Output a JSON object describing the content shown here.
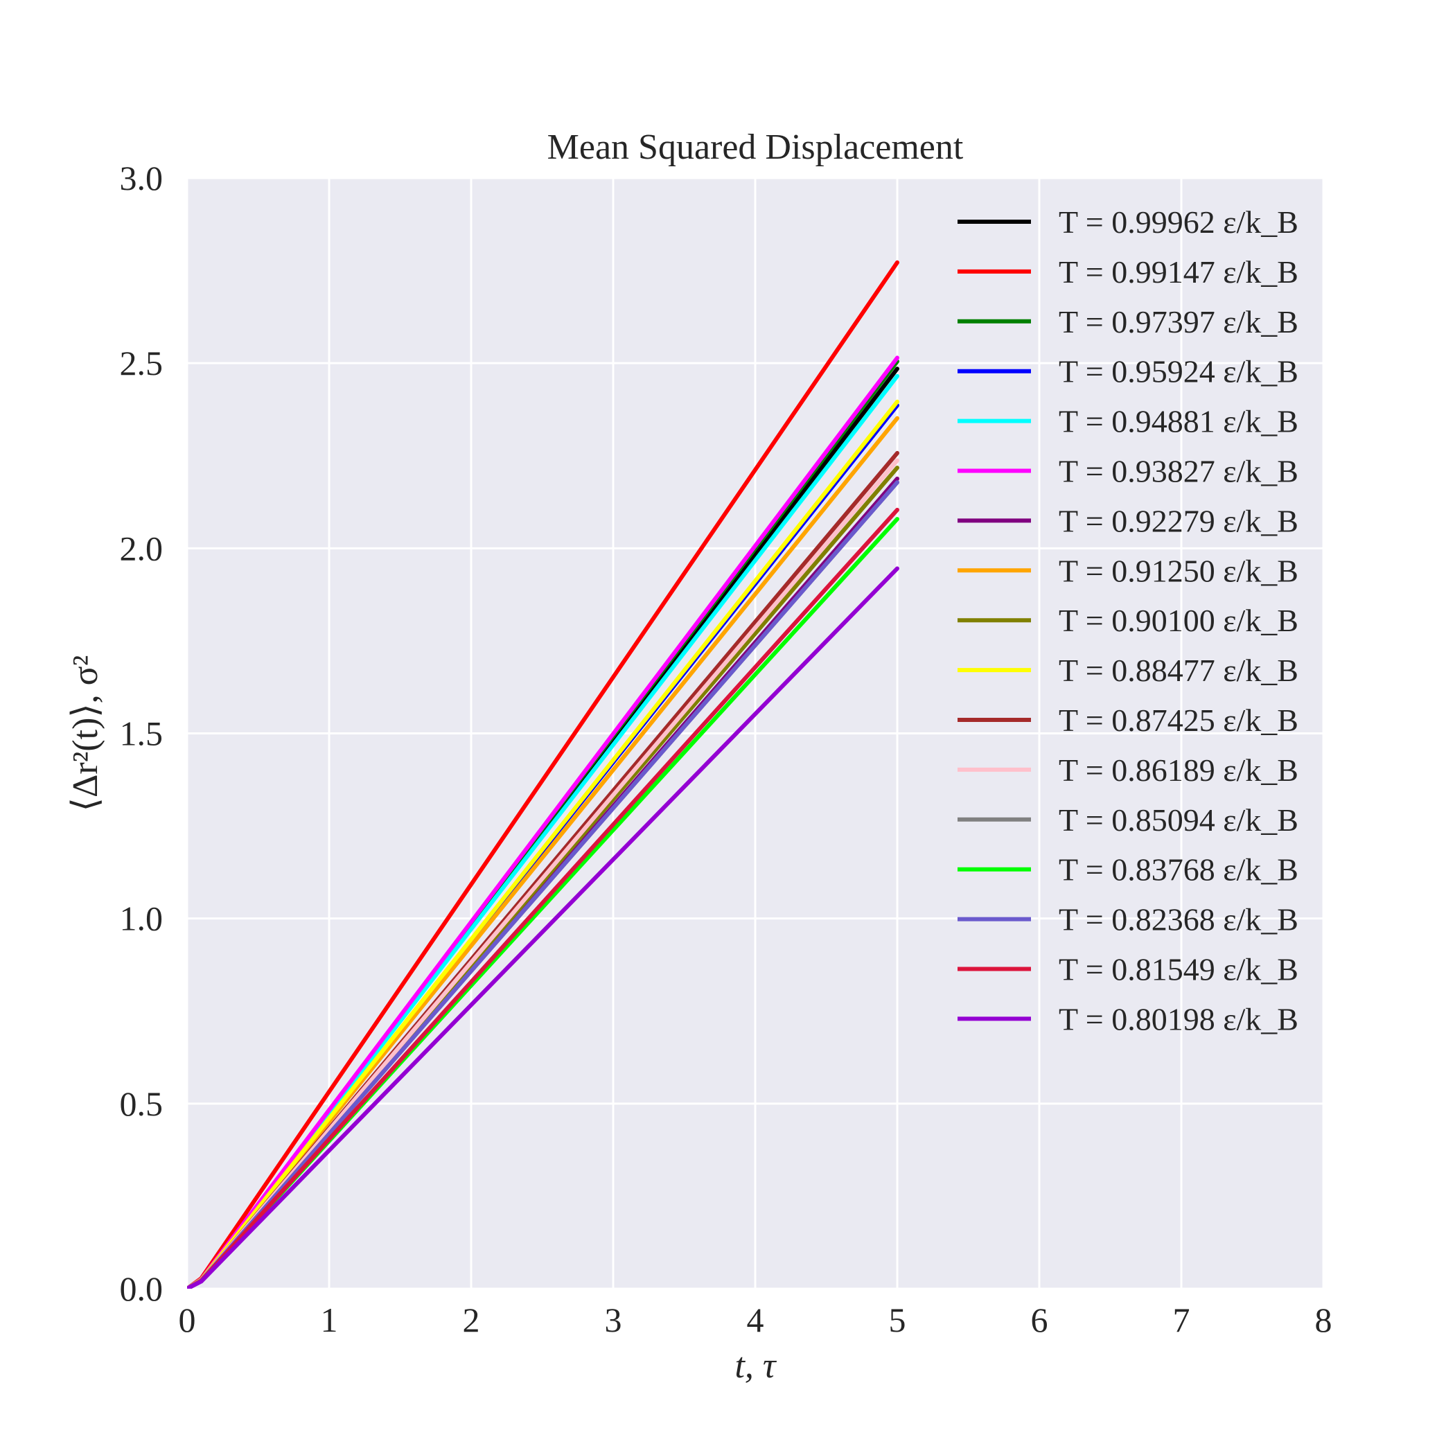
{
  "chart_data": {
    "type": "line",
    "title": "Mean Squared Displacement",
    "xlabel": "t, τ",
    "ylabel": "⟨Δr²(t)⟩, σ²",
    "xlim": [
      0,
      8
    ],
    "ylim": [
      0,
      3.0
    ],
    "xticks": [
      "0",
      "1",
      "2",
      "3",
      "4",
      "5",
      "6",
      "7",
      "8"
    ],
    "yticks": [
      "0.0",
      "0.5",
      "1.0",
      "1.5",
      "2.0",
      "2.5",
      "3.0"
    ],
    "grid": true,
    "legend_position": "top-right",
    "x": [
      0.0,
      0.1,
      0.2,
      0.5,
      1.0,
      1.5,
      2.0,
      2.5,
      3.0,
      3.5,
      4.0,
      4.5,
      5.0
    ],
    "series": [
      {
        "name": "T = 0.99962 ε/k_B",
        "color": "#000000",
        "slope": 0.502
      },
      {
        "name": "T = 0.99147 ε/k_B",
        "color": "#ff0000",
        "slope": 0.56
      },
      {
        "name": "T = 0.97397 ε/k_B",
        "color": "#008000",
        "slope": 0.506
      },
      {
        "name": "T = 0.95924 ε/k_B",
        "color": "#0000ff",
        "slope": 0.482
      },
      {
        "name": "T = 0.94881 ε/k_B",
        "color": "#00ffff",
        "slope": 0.498
      },
      {
        "name": "T = 0.93827 ε/k_B",
        "color": "#ff00ff",
        "slope": 0.508
      },
      {
        "name": "T = 0.92279 ε/k_B",
        "color": "#800080",
        "slope": 0.442
      },
      {
        "name": "T = 0.91250 ε/k_B",
        "color": "#ffa500",
        "slope": 0.475
      },
      {
        "name": "T = 0.90100 ε/k_B",
        "color": "#808000",
        "slope": 0.448
      },
      {
        "name": "T = 0.88477 ε/k_B",
        "color": "#ffff00",
        "slope": 0.484
      },
      {
        "name": "T = 0.87425 ε/k_B",
        "color": "#a52a2a",
        "slope": 0.456
      },
      {
        "name": "T = 0.86189 ε/k_B",
        "color": "#ffc0cb",
        "slope": 0.452
      },
      {
        "name": "T = 0.85094 ε/k_B",
        "color": "#808080",
        "slope": 0.44
      },
      {
        "name": "T = 0.83768 ε/k_B",
        "color": "#00ff00",
        "slope": 0.42
      },
      {
        "name": "T = 0.82368 ε/k_B",
        "color": "#6a5acd",
        "slope": 0.44
      },
      {
        "name": "T = 0.81549 ε/k_B",
        "color": "#dc143c",
        "slope": 0.425
      },
      {
        "name": "T = 0.80198 ε/k_B",
        "color": "#9400d3",
        "slope": 0.393
      }
    ]
  }
}
